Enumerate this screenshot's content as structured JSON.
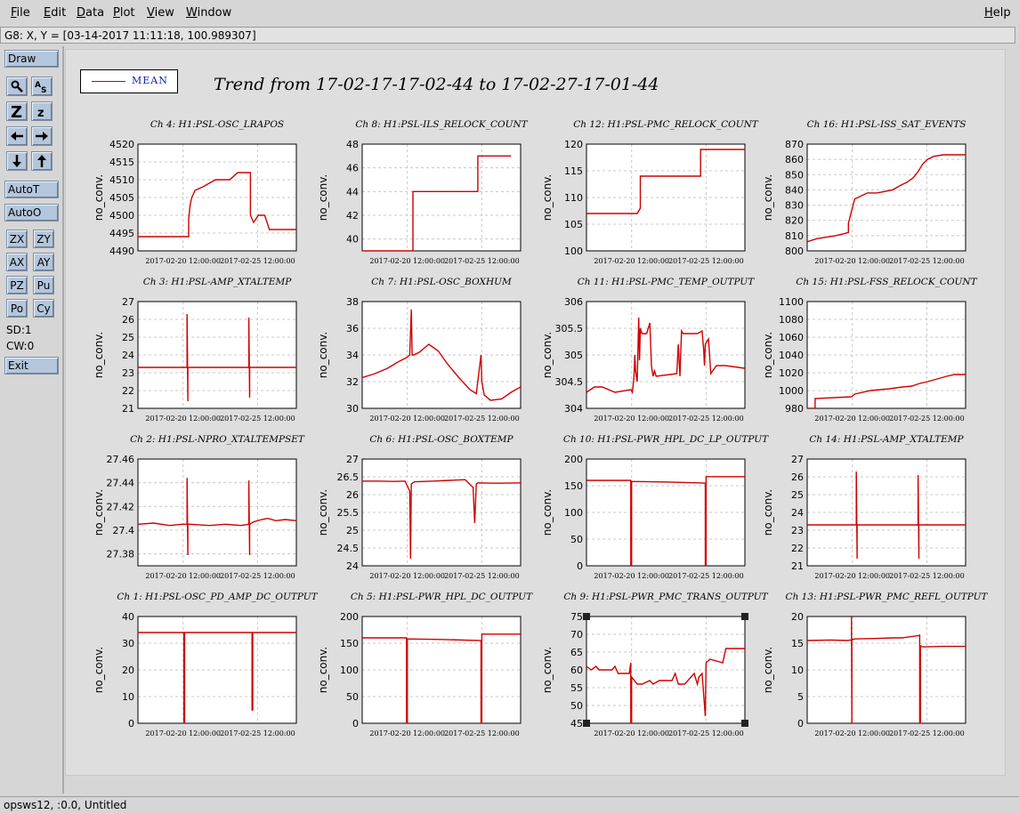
{
  "menu": {
    "file": "File",
    "edit": "Edit",
    "data": "Data",
    "plot": "Plot",
    "view": "View",
    "window": "Window",
    "help": "Help"
  },
  "status": "G8: X, Y = [03-14-2017 11:11:18, 100.989307]",
  "toolbar": {
    "draw": "Draw",
    "autot": "AutoT",
    "autoo": "AutoO",
    "zx": "ZX",
    "zy": "ZY",
    "ax": "AX",
    "ay": "AY",
    "pz": "PZ",
    "pu": "Pu",
    "po": "Po",
    "cy": "Cy",
    "sd": "SD:1",
    "cw": "CW:0",
    "exit": "Exit",
    "icons": [
      "magnify-icon",
      "zoom-text-icon",
      "zoom-in-icon",
      "zoom-out-icon",
      "arrow-left-icon",
      "arrow-right-icon",
      "arrow-down-icon",
      "arrow-up-icon"
    ]
  },
  "legend_label": "MEAN",
  "title": "Trend from 17-02-17-17-02-44 to 17-02-27-17-01-44",
  "footer": "opsws12, :0.0, Untitled",
  "colors": {
    "series": "#d00000",
    "legend_text": "#1020b0",
    "button": "#b4c6dc"
  },
  "chart_data": [
    {
      "type": "line",
      "title": "Ch 4: H1:PSL-OSC_LRAPOS",
      "ylabel": "no_conv.",
      "ylim": [
        4490,
        4520
      ],
      "yticks": [
        4490,
        4495,
        4500,
        4505,
        4510,
        4515,
        4520
      ],
      "xticks": [
        "2017-02-20 12:00:00",
        "2017-02-25 12:00:00"
      ],
      "x": [
        0,
        3.2,
        3.2,
        3.3,
        3.4,
        3.6,
        4.1,
        4.9,
        5.4,
        5.8,
        6.3,
        7.1,
        7.1,
        7.3,
        7.6,
        8.0,
        8.3,
        8.6,
        9.1,
        10
      ],
      "y": [
        4494,
        4494,
        4499,
        4503,
        4505,
        4507,
        4508,
        4510,
        4510,
        4510,
        4512,
        4512,
        4500,
        4498,
        4500,
        4500,
        4496,
        4496,
        4496,
        4496
      ]
    },
    {
      "type": "line",
      "title": "Ch 8: H1:PSL-ILS_RELOCK_COUNT",
      "ylabel": "no_conv.",
      "ylim": [
        39,
        48
      ],
      "yticks": [
        40,
        42,
        44,
        46,
        48
      ],
      "xticks": [
        "2017-02-20 12:00:00",
        "2017-02-25 12:00:00"
      ],
      "x": [
        0,
        3.2,
        3.2,
        7.3,
        7.3,
        9.4
      ],
      "y": [
        39,
        39,
        44,
        44,
        47,
        47
      ]
    },
    {
      "type": "line",
      "title": "Ch 12: H1:PSL-PMC_RELOCK_COUNT",
      "ylabel": "no_conv.",
      "ylim": [
        100,
        120
      ],
      "yticks": [
        100,
        105,
        110,
        115,
        120
      ],
      "xticks": [
        "2017-02-20 12:00:00",
        "2017-02-25 12:00:00"
      ],
      "x": [
        0,
        3.2,
        3.4,
        3.4,
        7.2,
        7.2,
        10
      ],
      "y": [
        107,
        107,
        108,
        114,
        114,
        119,
        119
      ]
    },
    {
      "type": "line",
      "title": "Ch 16: H1:PSL-ISS_SAT_EVENTS",
      "ylabel": "no_conv.",
      "ylim": [
        800,
        870
      ],
      "yticks": [
        800,
        810,
        820,
        830,
        840,
        850,
        860,
        870
      ],
      "xticks": [
        "2017-02-20 12:00:00",
        "2017-02-25 12:00:00"
      ],
      "x": [
        0,
        0.6,
        1.8,
        2.6,
        2.6,
        2.8,
        3.0,
        3.4,
        3.8,
        4.4,
        5.4,
        5.9,
        6.3,
        6.7,
        7.0,
        7.3,
        7.6,
        8.0,
        8.6,
        10
      ],
      "y": [
        806,
        808,
        810,
        812,
        818,
        826,
        834,
        836,
        838,
        838,
        840,
        843,
        845,
        848,
        852,
        857,
        860,
        862,
        863,
        863
      ]
    },
    {
      "type": "line",
      "title": "Ch 3: H1:PSL-AMP_XTALTEMP",
      "ylabel": "no_conv.",
      "ylim": [
        21,
        27
      ],
      "yticks": [
        21,
        22,
        23,
        24,
        25,
        26,
        27
      ],
      "xticks": [
        "2017-02-20 12:00:00",
        "2017-02-25 12:00:00"
      ],
      "x": [
        0,
        3.1,
        3.1,
        3.15,
        3.15,
        3.3,
        7.0,
        7.0,
        7.05,
        7.05,
        7.2,
        10
      ],
      "y": [
        23.3,
        23.3,
        26.3,
        21.4,
        23.3,
        23.3,
        23.3,
        26.1,
        21.6,
        23.3,
        23.3,
        23.3
      ]
    },
    {
      "type": "line",
      "title": "Ch 7: H1:PSL-OSC_BOXHUM",
      "ylabel": "no_conv.",
      "ylim": [
        30,
        38
      ],
      "yticks": [
        30,
        32,
        34,
        36,
        38
      ],
      "xticks": [
        "2017-02-20 12:00:00",
        "2017-02-25 12:00:00"
      ],
      "x": [
        0,
        0.8,
        1.6,
        2.3,
        2.8,
        3.0,
        3.1,
        3.15,
        3.25,
        3.6,
        4.2,
        4.8,
        5.4,
        6.1,
        6.8,
        7.2,
        7.5,
        7.55,
        7.7,
        8.1,
        8.8,
        9.4,
        10
      ],
      "y": [
        32.3,
        32.6,
        33.0,
        33.5,
        33.8,
        34.0,
        37.4,
        34.0,
        34.0,
        34.2,
        34.8,
        34.3,
        33.3,
        32.3,
        31.4,
        31.1,
        34.0,
        32.0,
        31.0,
        30.6,
        30.7,
        31.2,
        31.6
      ]
    },
    {
      "type": "line",
      "title": "Ch 11: H1:PSL-PMC_TEMP_OUTPUT",
      "ylabel": "no_conv.",
      "ylim": [
        304,
        306
      ],
      "yticks": [
        304,
        304.5,
        305,
        305.5,
        306
      ],
      "xticks": [
        "2017-02-20 12:00:00",
        "2017-02-25 12:00:00"
      ],
      "x": [
        0,
        0.5,
        1.0,
        1.8,
        2.8,
        2.9,
        3.0,
        3.05,
        3.1,
        3.2,
        3.3,
        3.35,
        3.4,
        3.5,
        3.8,
        4.0,
        4.1,
        4.2,
        4.3,
        4.4,
        5.7,
        5.8,
        5.9,
        6.0,
        6.1,
        6.3,
        7.0,
        7.3,
        7.4,
        7.45,
        7.5,
        7.6,
        7.7,
        7.85,
        8.2,
        8.5,
        8.8,
        10
      ],
      "y": [
        304.3,
        304.4,
        304.4,
        304.3,
        304.35,
        304.3,
        304.6,
        305.0,
        304.7,
        304.5,
        305.7,
        304.9,
        305.5,
        305.4,
        305.4,
        305.6,
        304.8,
        304.6,
        304.7,
        304.6,
        304.65,
        305.2,
        304.6,
        305.45,
        305.4,
        305.4,
        305.4,
        305.45,
        305.1,
        304.8,
        305.2,
        305.25,
        305.3,
        304.65,
        304.8,
        304.8,
        304.8,
        304.75
      ]
    },
    {
      "type": "line",
      "title": "Ch 15: H1:PSL-FSS_RELOCK_COUNT",
      "ylabel": "no_conv.",
      "ylim": [
        980,
        1100
      ],
      "yticks": [
        980,
        1000,
        1020,
        1040,
        1060,
        1080,
        1100
      ],
      "xticks": [
        "2017-02-20 12:00:00",
        "2017-02-25 12:00:00"
      ],
      "x": [
        0,
        0.5,
        0.5,
        2.8,
        3.0,
        4.0,
        5.2,
        6.0,
        6.6,
        7.1,
        7.6,
        8.0,
        8.4,
        8.8,
        9.3,
        10
      ],
      "y": [
        980,
        980,
        991,
        993,
        996,
        1000,
        1002,
        1004,
        1005,
        1008,
        1010,
        1012,
        1014,
        1016,
        1018,
        1018
      ]
    },
    {
      "type": "line",
      "title": "Ch 2: H1:PSL-NPRO_XTALTEMPSET",
      "ylabel": "no_conv.",
      "ylim": [
        27.37,
        27.46
      ],
      "yticks": [
        27.38,
        27.4,
        27.42,
        27.44,
        27.46
      ],
      "xticks": [
        "2017-02-20 12:00:00",
        "2017-02-25 12:00:00"
      ],
      "x": [
        0,
        1.0,
        2.0,
        2.8,
        3.1,
        3.1,
        3.15,
        3.15,
        3.3,
        4.5,
        5.5,
        6.5,
        7.0,
        7.0,
        7.05,
        7.05,
        7.3,
        7.8,
        8.2,
        8.7,
        9.3,
        10
      ],
      "y": [
        27.405,
        27.406,
        27.404,
        27.405,
        27.405,
        27.444,
        27.379,
        27.405,
        27.405,
        27.404,
        27.405,
        27.404,
        27.405,
        27.442,
        27.379,
        27.405,
        27.407,
        27.409,
        27.41,
        27.408,
        27.409,
        27.408
      ]
    },
    {
      "type": "line",
      "title": "Ch 6: H1:PSL-OSC_BOXTEMP",
      "ylabel": "no_conv.",
      "ylim": [
        24,
        27
      ],
      "yticks": [
        24,
        24.5,
        25,
        25.5,
        26,
        26.5,
        27
      ],
      "xticks": [
        "2017-02-20 12:00:00",
        "2017-02-25 12:00:00"
      ],
      "x": [
        0,
        1.0,
        2.0,
        2.7,
        3.0,
        3.05,
        3.1,
        3.3,
        4.5,
        5.5,
        6.5,
        7.0,
        7.1,
        7.2,
        7.3,
        8.5,
        10
      ],
      "y": [
        26.38,
        26.38,
        26.37,
        26.38,
        26.1,
        24.2,
        26.3,
        26.36,
        26.38,
        26.4,
        26.42,
        26.2,
        25.2,
        26.3,
        26.33,
        26.32,
        26.33
      ]
    },
    {
      "type": "line",
      "title": "Ch 10: H1:PSL-PWR_HPL_DC_LP_OUTPUT",
      "ylabel": "no_conv.",
      "ylim": [
        0,
        200
      ],
      "yticks": [
        0,
        50,
        100,
        150,
        200
      ],
      "xticks": [
        "2017-02-20 12:00:00",
        "2017-02-25 12:00:00"
      ],
      "x": [
        0,
        2.8,
        2.8,
        2.85,
        2.85,
        5.0,
        7.5,
        7.5,
        7.55,
        7.55,
        10
      ],
      "y": [
        160,
        160,
        0,
        0,
        158,
        157,
        155,
        0,
        0,
        167,
        167
      ]
    },
    {
      "type": "line",
      "title": "Ch 14: H1:PSL-AMP_XTALTEMP",
      "ylabel": "no_conv.",
      "ylim": [
        21,
        27
      ],
      "yticks": [
        21,
        22,
        23,
        24,
        25,
        26,
        27
      ],
      "xticks": [
        "2017-02-20 12:00:00",
        "2017-02-25 12:00:00"
      ],
      "x": [
        0,
        3.1,
        3.1,
        3.15,
        3.15,
        3.3,
        7.0,
        7.0,
        7.05,
        7.05,
        7.2,
        10
      ],
      "y": [
        23.3,
        23.3,
        26.3,
        21.4,
        23.3,
        23.3,
        23.3,
        26.1,
        21.4,
        23.3,
        23.3,
        23.3
      ]
    },
    {
      "type": "line",
      "title": "Ch 1: H1:PSL-OSC_PD_AMP_DC_OUTPUT",
      "ylabel": "no_conv.",
      "ylim": [
        0,
        40
      ],
      "yticks": [
        0,
        10,
        20,
        30,
        40
      ],
      "xticks": [
        "2017-02-20 12:00:00",
        "2017-02-25 12:00:00"
      ],
      "x": [
        0,
        2.9,
        2.9,
        2.95,
        2.95,
        7.2,
        7.2,
        7.25,
        7.25,
        10
      ],
      "y": [
        34,
        34,
        0,
        0,
        34,
        34,
        5,
        5,
        34,
        34
      ]
    },
    {
      "type": "line",
      "title": "Ch 5: H1:PSL-PWR_HPL_DC_OUTPUT",
      "ylabel": "no_conv.",
      "ylim": [
        0,
        200
      ],
      "yticks": [
        0,
        50,
        100,
        150,
        200
      ],
      "xticks": [
        "2017-02-20 12:00:00",
        "2017-02-25 12:00:00"
      ],
      "x": [
        0,
        2.8,
        2.8,
        2.85,
        2.85,
        5.0,
        7.5,
        7.5,
        7.55,
        7.55,
        10
      ],
      "y": [
        160,
        160,
        0,
        0,
        158,
        157,
        155,
        0,
        0,
        167,
        167
      ]
    },
    {
      "type": "line",
      "title": "Ch 9: H1:PSL-PWR_PMC_TRANS_OUTPUT",
      "ylabel": "no_conv.",
      "ylim": [
        45,
        75
      ],
      "yticks": [
        45,
        50,
        55,
        60,
        65,
        70,
        75
      ],
      "xticks": [
        "2017-02-20 12:00:00",
        "2017-02-25 12:00:00"
      ],
      "x": [
        0,
        0.3,
        0.6,
        0.8,
        1.6,
        1.8,
        2.0,
        2.7,
        2.8,
        2.8,
        2.85,
        2.85,
        3.2,
        3.5,
        4.0,
        4.2,
        4.6,
        5.4,
        5.6,
        5.8,
        6.2,
        6.8,
        7.0,
        7.1,
        7.3,
        7.5,
        7.5,
        7.55,
        7.55,
        7.8,
        8.6,
        8.8,
        10
      ],
      "y": [
        61,
        60,
        61,
        60,
        60,
        61,
        59,
        59,
        62,
        45,
        45,
        58,
        56,
        56,
        57,
        56,
        57,
        57,
        59,
        56,
        56,
        59,
        56,
        58,
        59,
        47,
        47,
        62,
        62,
        63,
        62,
        66,
        66
      ]
    },
    {
      "type": "line",
      "title": "Ch 13: H1:PSL-PWR_PMC_REFL_OUTPUT",
      "ylabel": "no_conv.",
      "ylim": [
        0,
        20
      ],
      "yticks": [
        0,
        5,
        10,
        15,
        20
      ],
      "xticks": [
        "2017-02-20 12:00:00",
        "2017-02-25 12:00:00"
      ],
      "x": [
        0,
        1.5,
        2.5,
        2.8,
        2.8,
        2.82,
        2.82,
        2.9,
        3.0,
        4.5,
        5.5,
        6.0,
        7.0,
        7.1,
        7.1,
        7.15,
        7.15,
        7.3,
        8.5,
        10
      ],
      "y": [
        15.5,
        15.6,
        15.5,
        15.6,
        20,
        0,
        15.8,
        15.7,
        15.8,
        15.9,
        16.0,
        16.0,
        16.4,
        16.5,
        0,
        0,
        14.5,
        14.3,
        14.4,
        14.4
      ]
    }
  ]
}
